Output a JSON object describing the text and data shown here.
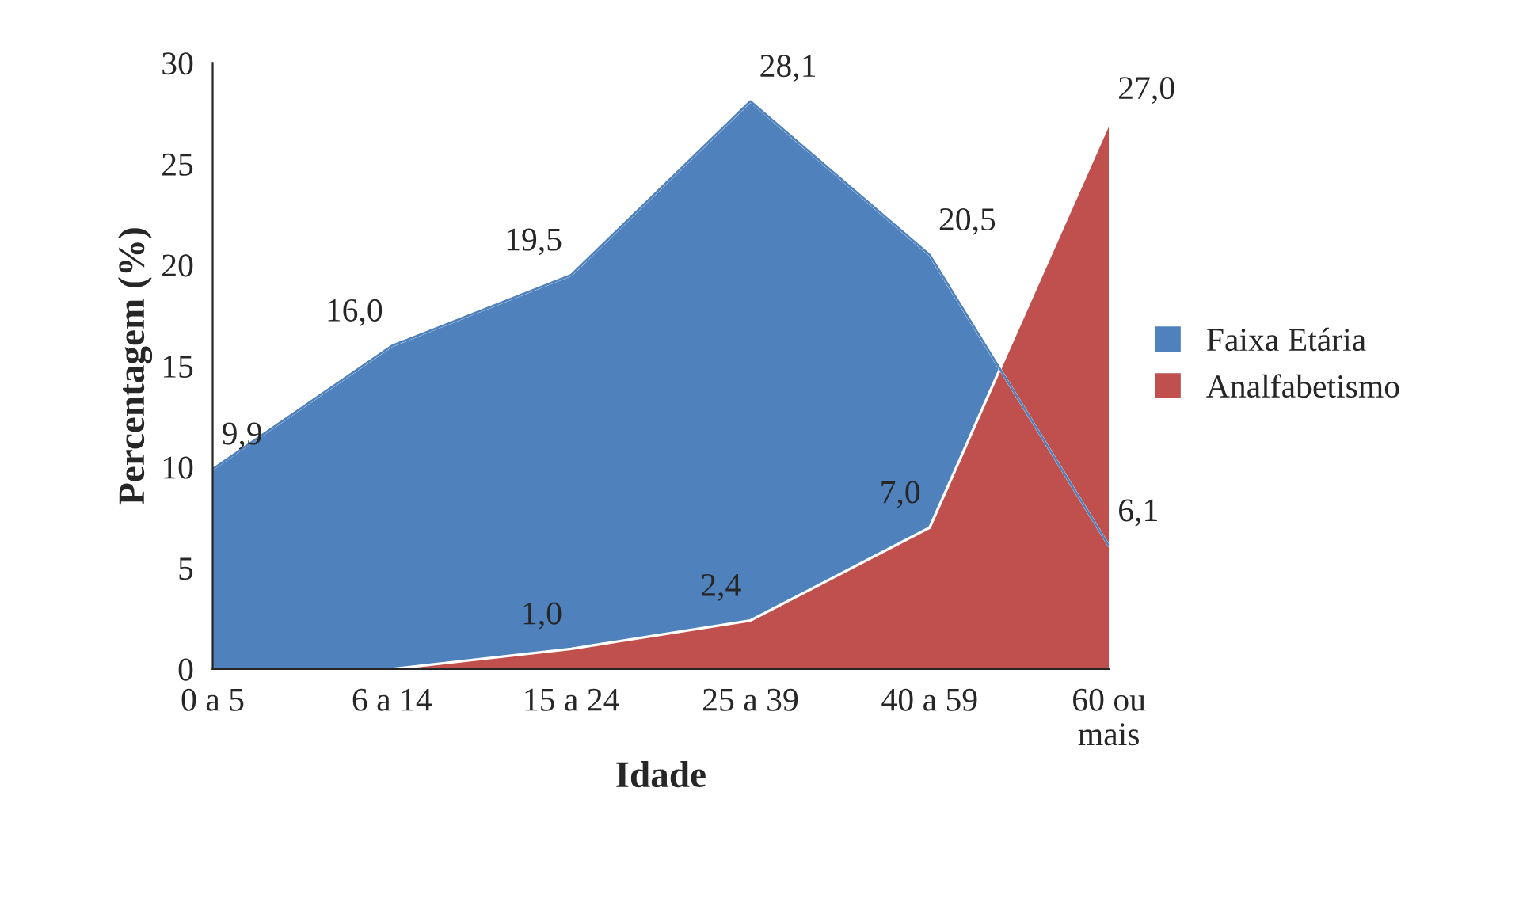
{
  "chart_data": {
    "type": "area",
    "xlabel": "Idade",
    "ylabel": "Percentagem (%)",
    "categories": [
      "0 a 5",
      "6 a 14",
      "15 a 24",
      "25 a 39",
      "40 a 59",
      "60 ou\nmais"
    ],
    "series": [
      {
        "name": "Faixa Etária",
        "color": "#4f81bd",
        "values": [
          9.9,
          16.0,
          19.5,
          28.1,
          20.5,
          6.1
        ],
        "value_labels": [
          "9,9",
          "16,0",
          "19,5",
          "28,1",
          "20,5",
          "6,1"
        ]
      },
      {
        "name": "Analfabetismo",
        "color": "#c0504d",
        "values": [
          null,
          0,
          1.0,
          2.4,
          7.0,
          27.0
        ],
        "value_labels": [
          null,
          null,
          "1,0",
          "2,4",
          "7,0",
          "27,0"
        ]
      }
    ],
    "ylim": [
      0,
      30
    ],
    "yticks": [
      0,
      5,
      10,
      15,
      20,
      25,
      30
    ],
    "grid": false,
    "legend": "right"
  }
}
